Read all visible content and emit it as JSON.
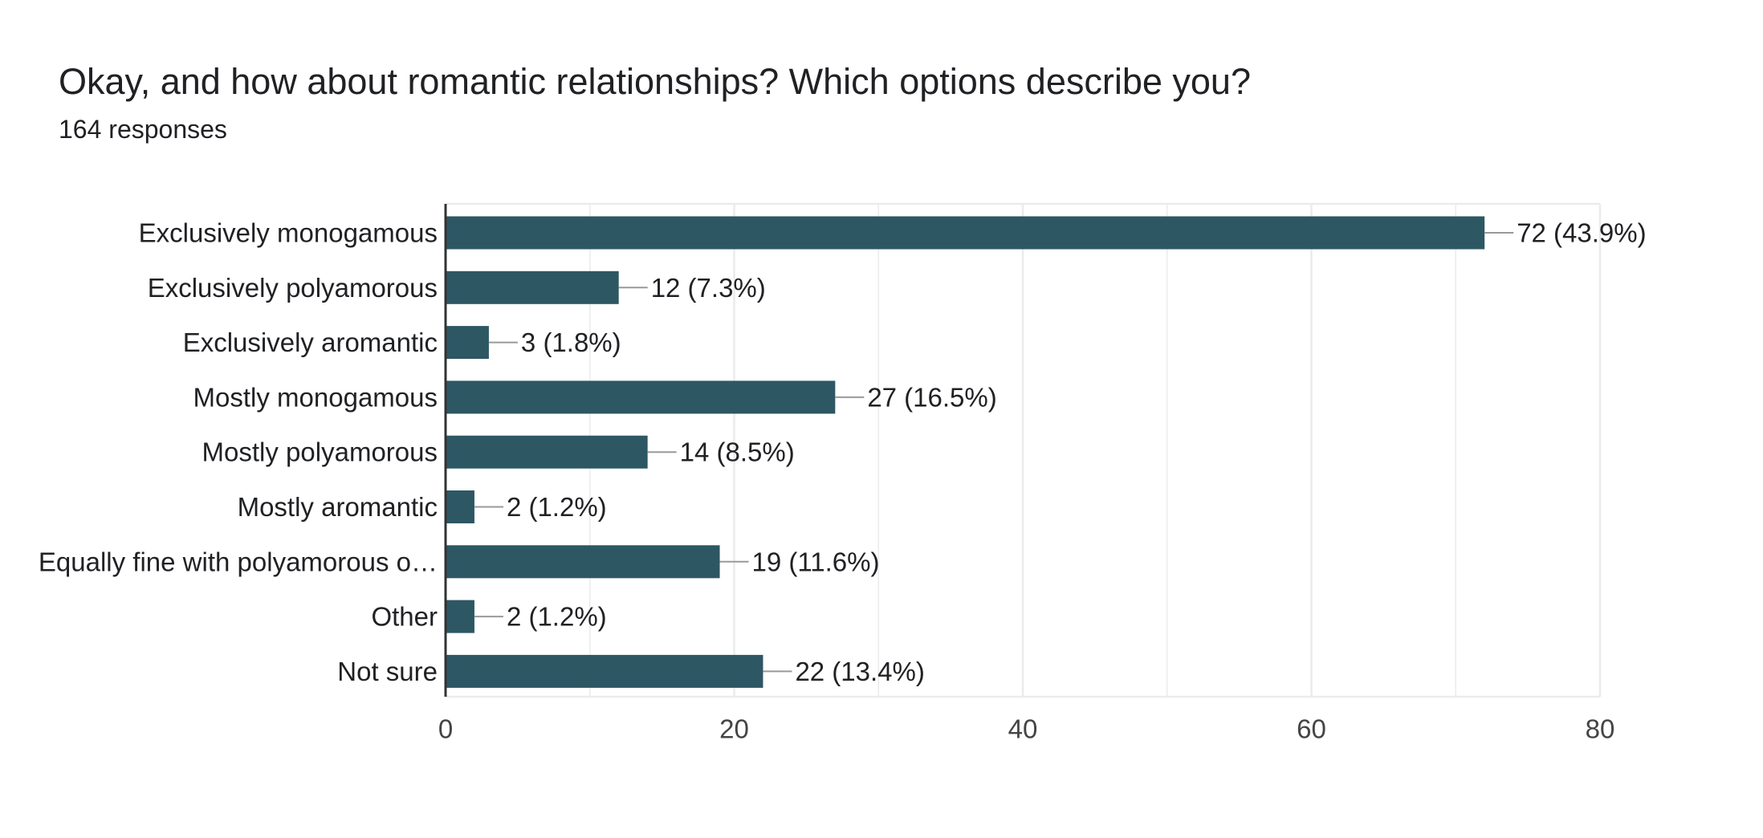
{
  "header": {
    "title": "Okay, and how about romantic relationships? Which options describe you?",
    "subtitle": "164 responses"
  },
  "colors": {
    "bar": "#2d5763",
    "gridline": "#ebebeb",
    "axis": "#333333",
    "leader": "#999999"
  },
  "chart_data": {
    "type": "bar",
    "orientation": "horizontal",
    "categories": [
      "Exclusively monogamous",
      "Exclusively polyamorous",
      "Exclusively aromantic",
      "Mostly monogamous",
      "Mostly polyamorous",
      "Mostly aromantic",
      "Equally fine with polyamorous o…",
      "Other",
      "Not sure"
    ],
    "values": [
      72,
      12,
      3,
      27,
      14,
      2,
      19,
      2,
      22
    ],
    "value_labels": [
      "72 (43.9%)",
      "12 (7.3%)",
      "3 (1.8%)",
      "27 (16.5%)",
      "14 (8.5%)",
      "2 (1.2%)",
      "19 (11.6%)",
      "2 (1.2%)",
      "22 (13.4%)"
    ],
    "xlim": [
      0,
      80
    ],
    "xticks": [
      0,
      20,
      40,
      60,
      80
    ],
    "xtick_labels": [
      "0",
      "20",
      "40",
      "60",
      "80"
    ],
    "minor_gridlines": [
      10,
      30,
      50,
      70
    ],
    "grid": true,
    "title": "",
    "xlabel": "",
    "ylabel": ""
  }
}
